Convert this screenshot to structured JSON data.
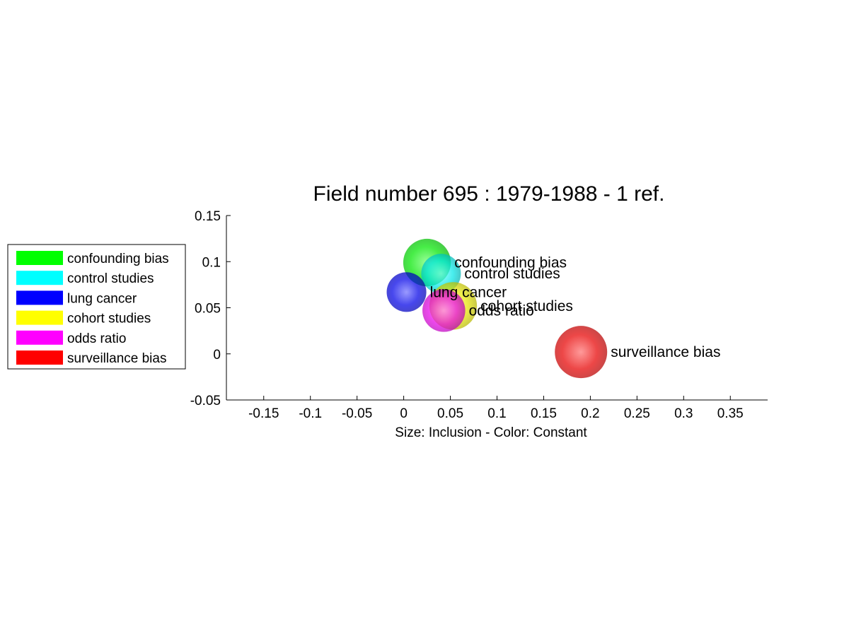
{
  "chart_data": {
    "type": "scatter",
    "title": "Field number 695 : 1979-1988  - 1 ref.",
    "xlabel": "Size: Inclusion - Color: Constant",
    "ylabel": "",
    "xlim": [
      -0.19,
      0.39
    ],
    "ylim": [
      -0.05,
      0.15
    ],
    "xticks": [
      -0.15,
      -0.1,
      -0.05,
      0,
      0.05,
      0.1,
      0.15,
      0.2,
      0.25,
      0.3,
      0.35
    ],
    "xtick_labels": [
      "-0.15",
      "-0.1",
      "-0.05",
      "0",
      "0.05",
      "0.1",
      "0.15",
      "0.2",
      "0.25",
      "0.3",
      "0.35"
    ],
    "yticks": [
      -0.05,
      0,
      0.05,
      0.1,
      0.15
    ],
    "ytick_labels": [
      "-0.05",
      "0",
      "0.05",
      "0.1",
      "0.15"
    ],
    "grid": false,
    "legend_position": "left",
    "points": [
      {
        "name": "confounding bias",
        "x": 0.025,
        "y": 0.099,
        "size": 0.03,
        "color": "#00ff00"
      },
      {
        "name": "control studies",
        "x": 0.04,
        "y": 0.087,
        "size": 0.025,
        "color": "#00ffff"
      },
      {
        "name": "lung cancer",
        "x": 0.003,
        "y": 0.067,
        "size": 0.025,
        "color": "#0000ff"
      },
      {
        "name": "cohort studies",
        "x": 0.053,
        "y": 0.052,
        "size": 0.03,
        "color": "#ffff00"
      },
      {
        "name": "odds ratio",
        "x": 0.043,
        "y": 0.047,
        "size": 0.027,
        "color": "#ff00ff"
      },
      {
        "name": "surveillance bias",
        "x": 0.19,
        "y": 0.002,
        "size": 0.033,
        "color": "#ff0000"
      }
    ]
  }
}
